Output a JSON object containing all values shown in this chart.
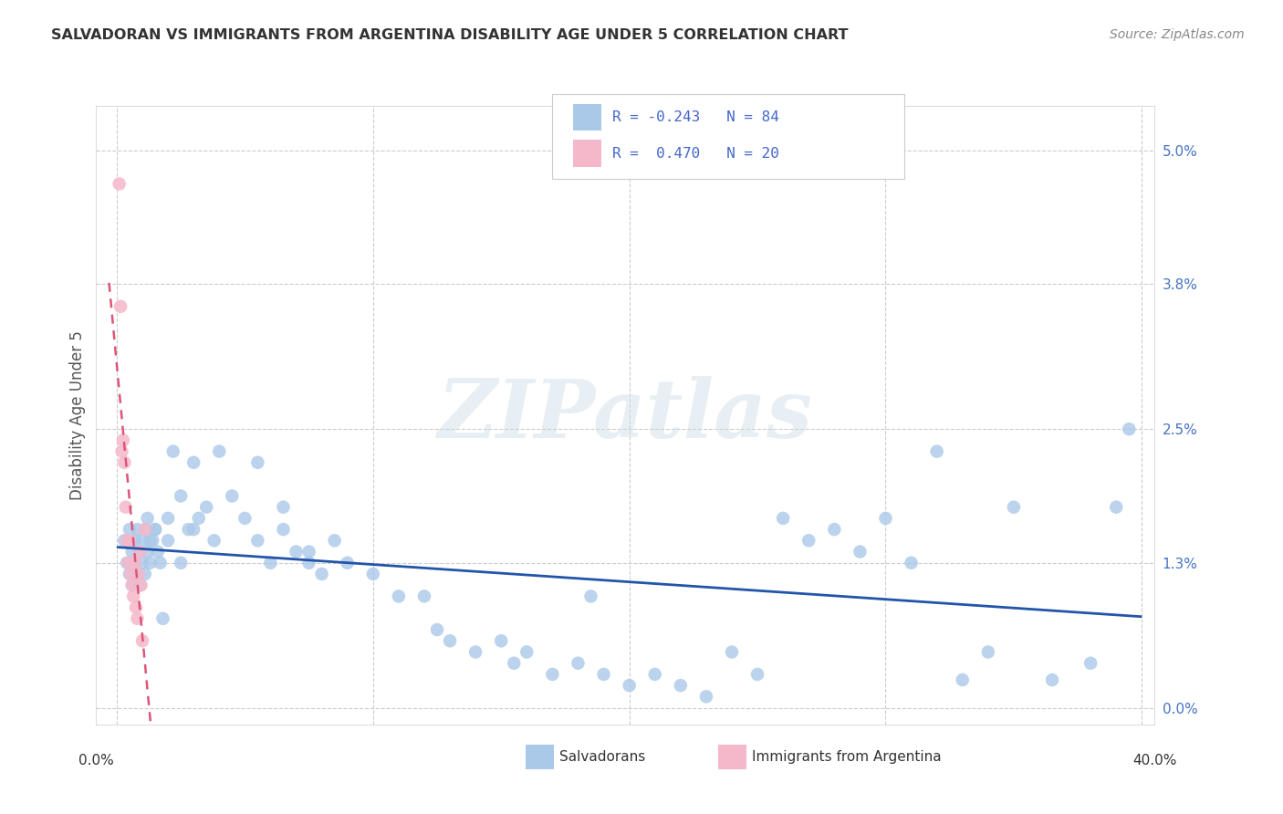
{
  "title": "SALVADORAN VS IMMIGRANTS FROM ARGENTINA DISABILITY AGE UNDER 5 CORRELATION CHART",
  "source": "Source: ZipAtlas.com",
  "ylabel": "Disability Age Under 5",
  "ytick_vals": [
    0.0,
    1.3,
    2.5,
    3.8,
    5.0
  ],
  "ytick_labels": [
    "0.0%",
    "1.3%",
    "2.5%",
    "3.8%",
    "5.0%"
  ],
  "xlim": [
    0.0,
    40.0
  ],
  "ylim": [
    -0.15,
    5.4
  ],
  "blue_color": "#aac8e8",
  "pink_color": "#f5b8cb",
  "trend_blue_color": "#2255aa",
  "trend_pink_color": "#dd5577",
  "tick_color": "#4472c4",
  "r_blue": "-0.243",
  "n_blue": "84",
  "r_pink": "0.470",
  "n_pink": "20",
  "watermark_text": "ZIPatlas",
  "label_blue": "Salvadorans",
  "label_pink": "Immigrants from Argentina",
  "salv_x": [
    0.3,
    0.4,
    0.5,
    0.5,
    0.6,
    0.6,
    0.7,
    0.7,
    0.8,
    0.8,
    0.9,
    0.9,
    1.0,
    1.0,
    1.1,
    1.1,
    1.2,
    1.2,
    1.3,
    1.4,
    1.5,
    1.6,
    1.7,
    1.8,
    2.0,
    2.2,
    2.5,
    2.8,
    3.0,
    3.2,
    3.5,
    3.8,
    4.0,
    4.5,
    5.0,
    5.5,
    6.0,
    6.5,
    7.0,
    7.5,
    8.0,
    9.0,
    10.0,
    11.0,
    12.0,
    12.5,
    13.0,
    14.0,
    15.0,
    15.5,
    16.0,
    17.0,
    18.0,
    19.0,
    20.0,
    21.0,
    22.0,
    23.0,
    24.0,
    25.0,
    26.0,
    27.0,
    28.0,
    29.0,
    30.0,
    31.0,
    32.0,
    33.0,
    34.0,
    35.0,
    36.5,
    38.0,
    39.0,
    39.5,
    1.3,
    1.5,
    2.0,
    2.5,
    3.0,
    6.5,
    5.5,
    7.5,
    8.5,
    18.5
  ],
  "salv_y": [
    1.5,
    1.3,
    1.6,
    1.2,
    1.4,
    1.1,
    1.5,
    1.3,
    1.6,
    1.2,
    1.4,
    1.1,
    1.5,
    1.3,
    1.6,
    1.2,
    1.4,
    1.7,
    1.3,
    1.5,
    1.6,
    1.4,
    1.3,
    0.8,
    1.7,
    2.3,
    1.9,
    1.6,
    2.2,
    1.7,
    1.8,
    1.5,
    2.3,
    1.9,
    1.7,
    1.5,
    1.3,
    1.6,
    1.4,
    1.3,
    1.2,
    1.3,
    1.2,
    1.0,
    1.0,
    0.7,
    0.6,
    0.5,
    0.6,
    0.4,
    0.5,
    0.3,
    0.4,
    0.3,
    0.2,
    0.3,
    0.2,
    0.1,
    0.5,
    0.3,
    1.7,
    1.5,
    1.6,
    1.4,
    1.7,
    1.3,
    2.3,
    0.25,
    0.5,
    1.8,
    0.25,
    0.4,
    1.8,
    2.5,
    1.5,
    1.6,
    1.5,
    1.3,
    1.6,
    1.8,
    2.2,
    1.4,
    1.5,
    1.0
  ],
  "arg_x": [
    0.1,
    0.15,
    0.2,
    0.25,
    0.3,
    0.35,
    0.4,
    0.45,
    0.5,
    0.55,
    0.6,
    0.65,
    0.7,
    0.75,
    0.8,
    0.85,
    0.9,
    0.95,
    1.0,
    1.1
  ],
  "arg_y": [
    4.7,
    3.6,
    2.3,
    2.4,
    2.2,
    1.8,
    1.5,
    1.3,
    1.5,
    1.2,
    1.1,
    1.0,
    1.3,
    0.9,
    0.8,
    1.2,
    1.4,
    1.1,
    0.6,
    1.6
  ]
}
